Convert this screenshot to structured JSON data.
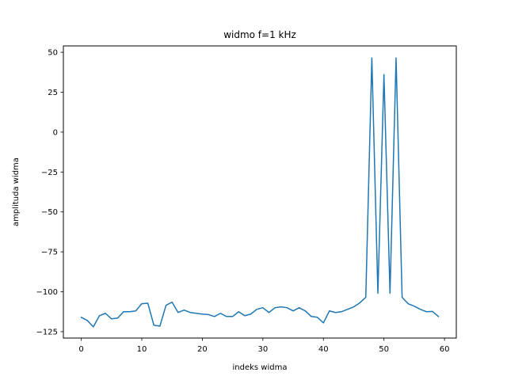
{
  "chart_data": {
    "type": "line",
    "title": "widmo f=1 kHz",
    "xlabel": "indeks widma",
    "ylabel": "amplituda widma",
    "xlim": [
      -2.95,
      61.95
    ],
    "ylim": [
      -129,
      54
    ],
    "xticks": [
      0,
      10,
      20,
      30,
      40,
      50,
      60
    ],
    "yticks": [
      50,
      25,
      0,
      -25,
      -50,
      -75,
      -100,
      -125
    ],
    "grid": false,
    "series": [
      {
        "color": "#1f77b4",
        "x": [
          0,
          1,
          2,
          3,
          4,
          5,
          6,
          7,
          8,
          9,
          10,
          11,
          12,
          13,
          14,
          15,
          16,
          17,
          18,
          19,
          20,
          21,
          22,
          23,
          24,
          25,
          26,
          27,
          28,
          29,
          30,
          31,
          32,
          33,
          34,
          35,
          36,
          37,
          38,
          39,
          40,
          41,
          42,
          43,
          44,
          45,
          46,
          47,
          48,
          49,
          50,
          51,
          52,
          53,
          54,
          55,
          56,
          57,
          58,
          59
        ],
        "values": [
          -116,
          -118,
          -122,
          -115,
          -113.5,
          -117,
          -116.5,
          -112.5,
          -112.5,
          -112,
          -107.5,
          -107.2,
          -121,
          -121.5,
          -108.5,
          -106.5,
          -113,
          -111.5,
          -113,
          -113.5,
          -114,
          -114.3,
          -115.5,
          -113.5,
          -115.5,
          -115.5,
          -112.5,
          -115,
          -114,
          -111,
          -110,
          -113,
          -110,
          -109.5,
          -110,
          -112,
          -110,
          -112,
          -115.5,
          -116,
          -119.5,
          -112,
          -113,
          -112.5,
          -111,
          -109.5,
          -107,
          -103.5,
          46.5,
          -101,
          36,
          -101,
          46.5,
          -103.5,
          -107.5,
          -109,
          -111,
          -112.5,
          -112.3,
          -115.5
        ]
      }
    ]
  }
}
